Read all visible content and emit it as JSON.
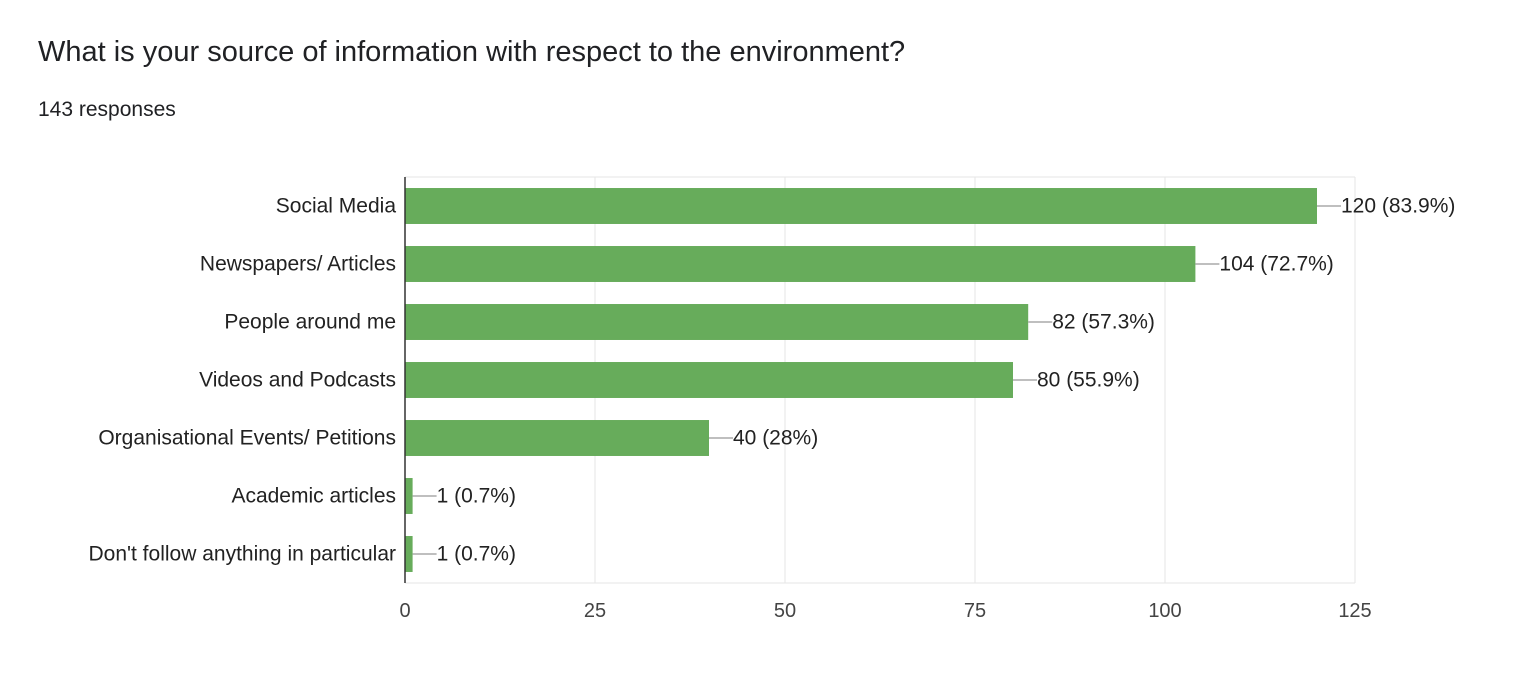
{
  "header": {
    "title": "What is your source of information with respect to the environment?",
    "responses": "143 responses"
  },
  "colors": {
    "bar": "#67ac5b",
    "grid": "#e6e6e6",
    "axis": "#333333",
    "leader": "#999999"
  },
  "chart_data": {
    "type": "bar",
    "orientation": "horizontal",
    "title": "What is your source of information with respect to the environment?",
    "categories": [
      "Social Media",
      "Newspapers/ Articles",
      "People around me",
      "Videos and Podcasts",
      "Organisational Events/ Petitions",
      "Academic articles",
      "Don't follow anything in particular"
    ],
    "values": [
      120,
      104,
      82,
      80,
      40,
      1,
      1
    ],
    "data_labels": [
      "120 (83.9%)",
      "104 (72.7%)",
      "82 (57.3%)",
      "80 (55.9%)",
      "40 (28%)",
      "1 (0.7%)",
      "1 (0.7%)"
    ],
    "xlim": [
      0,
      125
    ],
    "xticks": [
      0,
      25,
      50,
      75,
      100,
      125
    ],
    "xlabel": "",
    "ylabel": "",
    "grid": true,
    "legend": "none"
  }
}
